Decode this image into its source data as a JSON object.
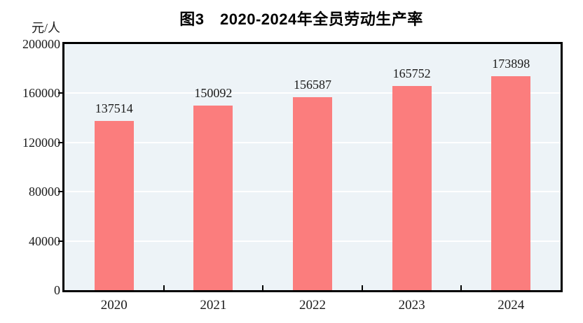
{
  "title": "图3　2020-2024年全员劳动生产率",
  "y_unit_label": "元/人",
  "colors": {
    "bar": "#FB7D7D",
    "plot_background": "#EDF3F7",
    "gridline": "#FFFFFF",
    "axis": "#000000",
    "text": "#1A1A1A"
  },
  "chart_data": {
    "type": "bar",
    "title": "图3　2020-2024年全员劳动生产率",
    "categories": [
      "2020",
      "2021",
      "2022",
      "2023",
      "2024"
    ],
    "values": [
      137514,
      150092,
      156587,
      165752,
      173898
    ],
    "data_labels": [
      "137514",
      "150092",
      "156587",
      "165752",
      "173898"
    ],
    "xlabel": "",
    "ylabel": "元/人",
    "ylim": [
      0,
      200000
    ],
    "yticks": [
      0,
      40000,
      80000,
      120000,
      160000,
      200000
    ],
    "ytick_labels": [
      "0",
      "40000",
      "80000",
      "120000",
      "160000",
      "200000"
    ],
    "grid": true,
    "gridline_ticks": [
      40000,
      80000,
      120000,
      160000
    ],
    "legend_position": "none"
  }
}
